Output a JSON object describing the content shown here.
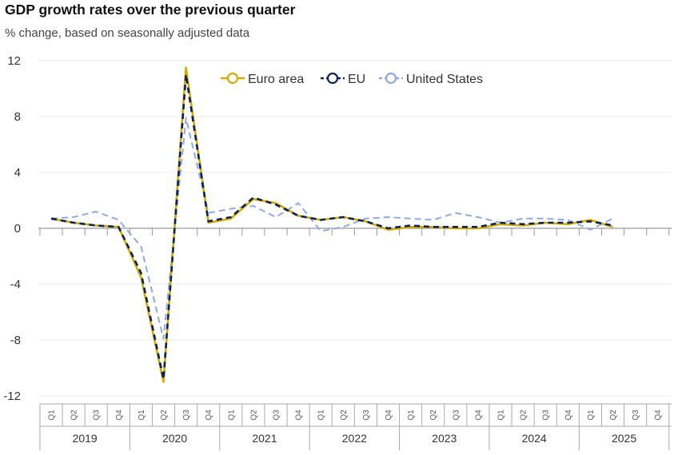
{
  "title": "GDP growth rates over the previous quarter",
  "subtitle": "% change, based on seasonally adjusted data",
  "chart_data": {
    "type": "line",
    "ylim": [
      -12,
      12
    ],
    "yticks": [
      "12",
      "8",
      "4",
      "0",
      "-4",
      "-8",
      "-12"
    ],
    "ytick_values": [
      12,
      8,
      4,
      0,
      -4,
      -8,
      -12
    ],
    "quarter_labels": [
      "Q1",
      "Q2",
      "Q3",
      "Q4"
    ],
    "years": [
      "2019",
      "2020",
      "2021",
      "2022",
      "2023",
      "2024",
      "2025"
    ],
    "grid": true,
    "legend_position": "top-center",
    "series": [
      {
        "name": "Euro area",
        "color": "#d4aa00",
        "style": "solid",
        "values": [
          0.7,
          0.4,
          0.2,
          0.1,
          -3.5,
          -11.0,
          11.5,
          0.4,
          0.7,
          2.1,
          1.8,
          0.9,
          0.6,
          0.8,
          0.5,
          -0.1,
          0.1,
          0.1,
          0.0,
          0.0,
          0.3,
          0.2,
          0.4,
          0.3,
          0.6,
          0.1
        ]
      },
      {
        "name": "EU",
        "color": "#0b2259",
        "style": "dashed",
        "values": [
          0.7,
          0.4,
          0.2,
          0.1,
          -3.2,
          -10.8,
          11.0,
          0.5,
          0.8,
          2.2,
          1.7,
          0.9,
          0.6,
          0.8,
          0.5,
          0.0,
          0.2,
          0.1,
          0.1,
          0.1,
          0.4,
          0.3,
          0.4,
          0.4,
          0.5,
          0.2
        ]
      },
      {
        "name": "United States",
        "color": "#8fa9e6",
        "style": "dashed",
        "values": [
          0.7,
          0.8,
          1.2,
          0.6,
          -1.3,
          -7.9,
          7.9,
          1.1,
          1.4,
          1.6,
          0.8,
          1.8,
          -0.2,
          0.1,
          0.7,
          0.8,
          0.7,
          0.6,
          1.1,
          0.8,
          0.4,
          0.7,
          0.7,
          0.6,
          -0.1,
          0.7
        ]
      }
    ]
  }
}
